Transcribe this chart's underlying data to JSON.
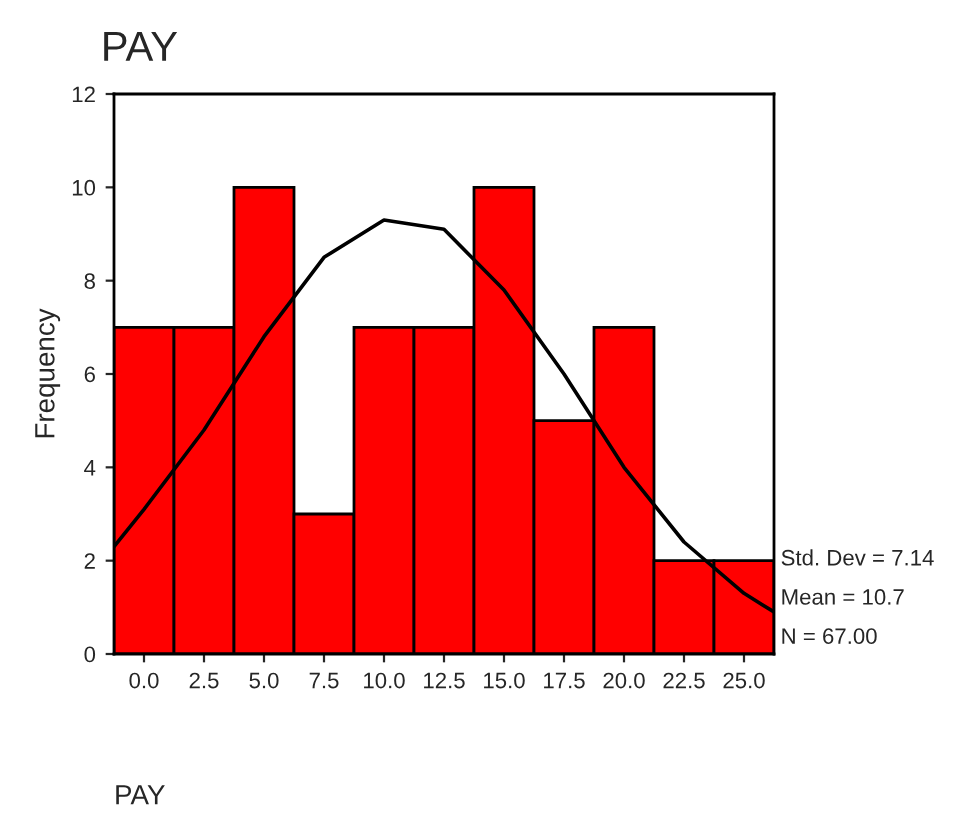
{
  "chart_data": {
    "type": "histogram",
    "title": "PAY",
    "xlabel": "PAY",
    "ylabel": "Frequency",
    "bins": [
      -1.25,
      1.25,
      3.75,
      6.25,
      8.75,
      11.25,
      13.75,
      16.25,
      18.75,
      21.25,
      23.75,
      26.25
    ],
    "values": [
      7,
      7,
      10,
      3,
      7,
      7,
      10,
      5,
      7,
      2,
      2
    ],
    "color": "#ff0000",
    "series": [
      {
        "type": "line",
        "color": "#000000",
        "x": [
          -1.25,
          0,
          2.5,
          5,
          7.5,
          10,
          12.5,
          15,
          17.5,
          20,
          22.5,
          25,
          26.25
        ],
        "values": [
          2.3,
          3.1,
          4.8,
          6.8,
          8.5,
          9.3,
          9.1,
          7.8,
          6.0,
          4.0,
          2.4,
          1.3,
          0.9
        ]
      }
    ],
    "xlim": [
      -1.25,
      26.25
    ],
    "xticks": [
      {
        "value": 0,
        "label": "0.0"
      },
      2.5,
      {
        "value": 5,
        "label": "5.0"
      },
      7.5,
      {
        "value": 10,
        "label": "10.0"
      },
      12.5,
      {
        "value": 15,
        "label": "15.0"
      },
      17.5,
      {
        "value": 20,
        "label": "20.0"
      },
      22.5,
      {
        "value": 25,
        "label": "25.0"
      }
    ],
    "ylim": [
      0,
      12
    ],
    "yticks": [
      0,
      2,
      4,
      6,
      8,
      10,
      12
    ],
    "annotations": [
      "Std. Dev = 7.14",
      "Mean = 10.7",
      "N = 67.00"
    ],
    "grid": false,
    "legend": false
  }
}
